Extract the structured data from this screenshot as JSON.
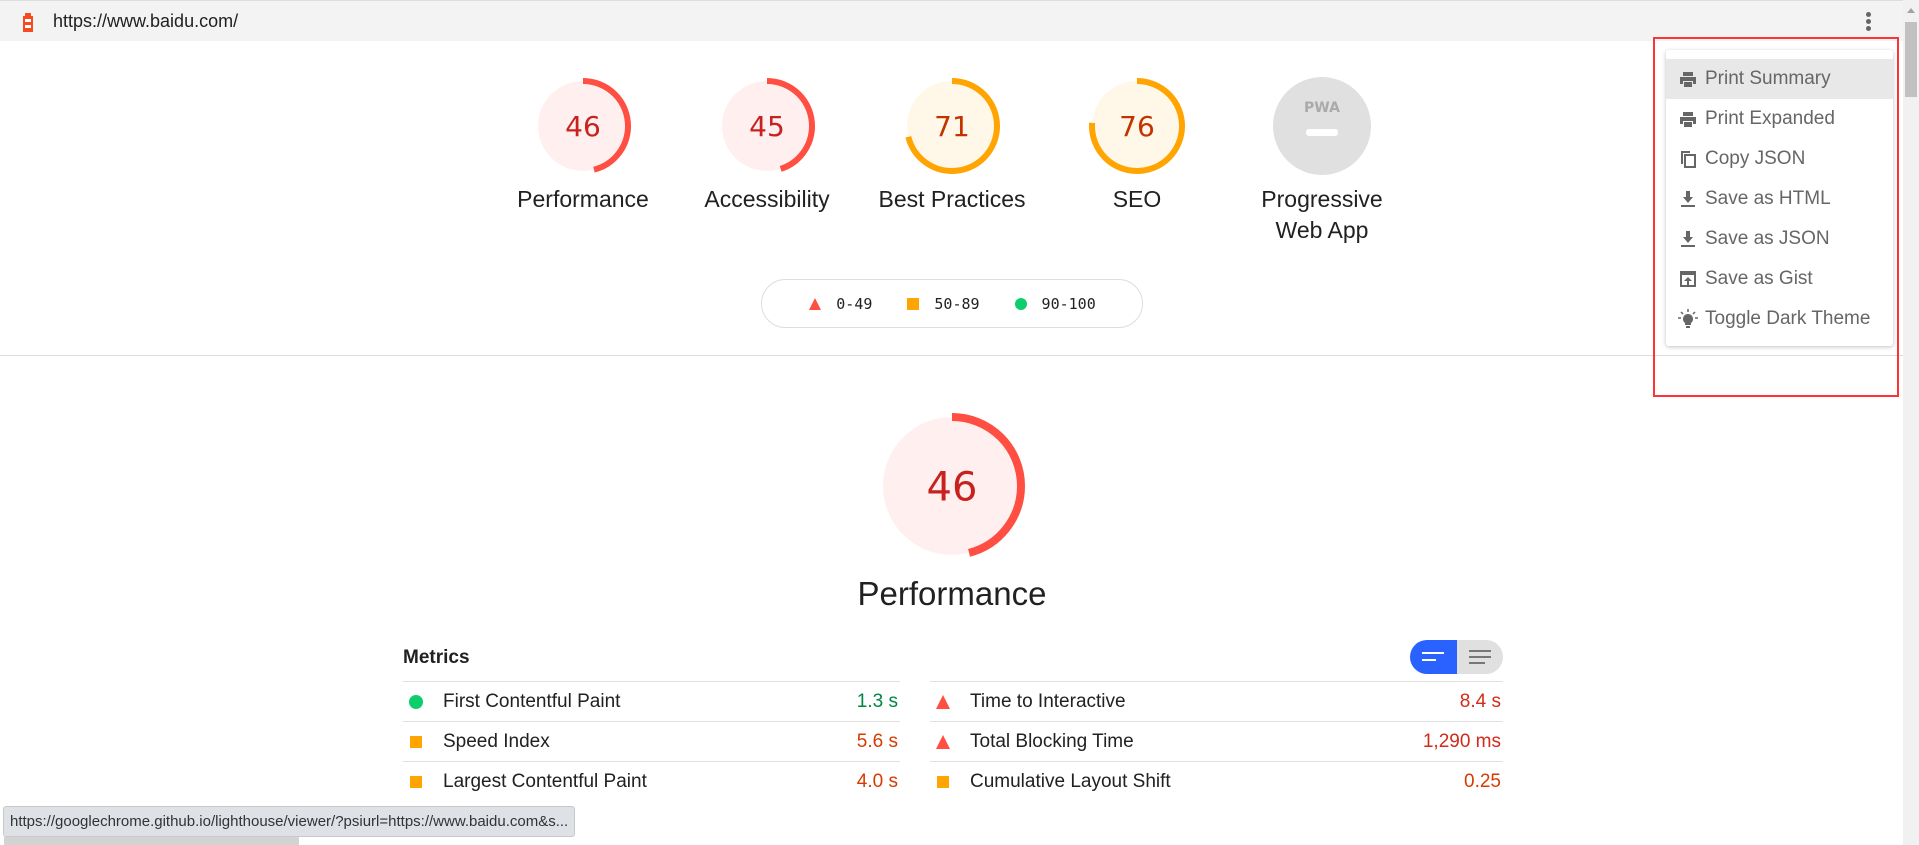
{
  "topbar": {
    "url": "https://www.baidu.com/",
    "logo_icon": "lighthouse-icon",
    "menu_icon": "kebab-menu-icon"
  },
  "categories": [
    {
      "label": "Performance",
      "score": 46,
      "rating": "fail"
    },
    {
      "label": "Accessibility",
      "score": 45,
      "rating": "fail"
    },
    {
      "label": "Best Practices",
      "score": 71,
      "rating": "average"
    },
    {
      "label": "SEO",
      "score": 76,
      "rating": "average"
    },
    {
      "label": "Progressive Web App",
      "line1": "Progressive",
      "line2": "Web App",
      "badge": "PWA",
      "rating": "na"
    }
  ],
  "legend": [
    {
      "range": "0-49",
      "shape": "triangle",
      "color": "#ff4e42"
    },
    {
      "range": "50-89",
      "shape": "square",
      "color": "#ffa400"
    },
    {
      "range": "90-100",
      "shape": "circle",
      "color": "#0cce6b"
    }
  ],
  "performance": {
    "score": 46,
    "title": "Performance"
  },
  "metrics": {
    "header": "Metrics",
    "left": [
      {
        "name": "First Contentful Paint",
        "value": "1.3 s",
        "rating": "pass"
      },
      {
        "name": "Speed Index",
        "value": "5.6 s",
        "rating": "average"
      },
      {
        "name": "Largest Contentful Paint",
        "value": "4.0 s",
        "rating": "average"
      }
    ],
    "right": [
      {
        "name": "Time to Interactive",
        "value": "8.4 s",
        "rating": "fail"
      },
      {
        "name": "Total Blocking Time",
        "value": "1,290 ms",
        "rating": "fail"
      },
      {
        "name": "Cumulative Layout Shift",
        "value": "0.25",
        "rating": "average"
      }
    ]
  },
  "menu": [
    {
      "label": "Print Summary",
      "icon": "print-icon",
      "active": true
    },
    {
      "label": "Print Expanded",
      "icon": "print-icon"
    },
    {
      "label": "Copy JSON",
      "icon": "copy-icon"
    },
    {
      "label": "Save as HTML",
      "icon": "download-icon"
    },
    {
      "label": "Save as JSON",
      "icon": "download-icon"
    },
    {
      "label": "Save as Gist",
      "icon": "upload-box-icon"
    },
    {
      "label": "Toggle Dark Theme",
      "icon": "lightbulb-icon"
    }
  ],
  "status_bar": "https://googlechrome.github.io/lighthouse/viewer/?psiurl=https://www.baidu.com&s...",
  "colors": {
    "fail": "#ff4e42",
    "average": "#ffa400",
    "pass": "#0cce6b",
    "fail_bg": "#fff0ef",
    "average_bg": "#fff8e9",
    "accent": "#2962ff"
  }
}
